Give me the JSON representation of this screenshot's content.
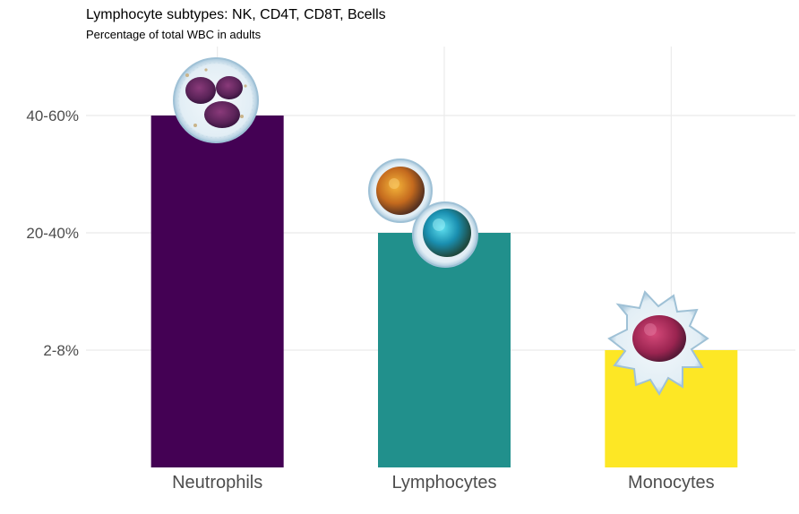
{
  "chart_data": {
    "type": "bar",
    "title": "Lymphocyte subtypes: NK, CD4T, CD8T, Bcells",
    "subtitle": "Percentage of total WBC in adults",
    "xlabel": "",
    "ylabel": "",
    "categories": [
      "Neutrophils",
      "Lymphocytes",
      "Monocytes"
    ],
    "values": [
      3,
      2,
      1
    ],
    "y_ticks": [
      {
        "value": 1,
        "label": "2-8%"
      },
      {
        "value": 2,
        "label": "20-40%"
      },
      {
        "value": 3,
        "label": "40-60%"
      }
    ],
    "ylim": [
      0,
      3.6
    ],
    "grid": true,
    "legend": "none",
    "colors": [
      "#440154",
      "#21908C",
      "#FDE725"
    ],
    "cell_icons": [
      [
        "neutrophil-cell-icon"
      ],
      [
        "lymphocyte-cell-icon-orange",
        "lymphocyte-cell-icon-blue"
      ],
      [
        "monocyte-cell-icon"
      ]
    ]
  }
}
